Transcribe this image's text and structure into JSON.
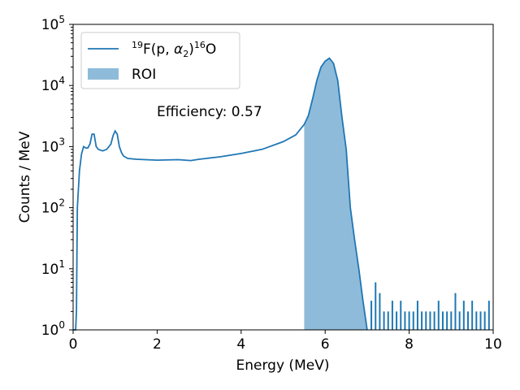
{
  "chart_data": {
    "type": "line",
    "title": "",
    "xlabel": "Energy (MeV)",
    "ylabel": "Counts / MeV",
    "xlim": [
      0,
      10
    ],
    "ylim": [
      1,
      100000
    ],
    "yscale": "log",
    "grid": false,
    "legend_position": "top-left",
    "x_ticks": [
      "0",
      "2",
      "4",
      "6",
      "8",
      "10"
    ],
    "y_ticks": [
      {
        "base": "10",
        "exp": "0"
      },
      {
        "base": "10",
        "exp": "1"
      },
      {
        "base": "10",
        "exp": "2"
      },
      {
        "base": "10",
        "exp": "3"
      },
      {
        "base": "10",
        "exp": "4"
      },
      {
        "base": "10",
        "exp": "5"
      }
    ],
    "legend": {
      "line_label": {
        "sup1": "19",
        "main1": "F(p, ",
        "alpha": "α",
        "sub": "2",
        "close": ")",
        "sup2": "16",
        "main2": "O"
      },
      "roi_label": "ROI"
    },
    "annotation": "Efficiency: 0.57",
    "colors": {
      "line": "#1f77b4",
      "roi_fill": "#8fbbda"
    },
    "roi_range": [
      5.5,
      7.0
    ],
    "series": [
      {
        "x": [
          0.0,
          0.06,
          0.08,
          0.1,
          0.15,
          0.2,
          0.25,
          0.3,
          0.35,
          0.4,
          0.45,
          0.5,
          0.55,
          0.6,
          0.7,
          0.8,
          0.9,
          0.95,
          1.0,
          1.05,
          1.1,
          1.15,
          1.2,
          1.3,
          1.5,
          2.0,
          2.5,
          2.8,
          3.0,
          3.5,
          4.0,
          4.5,
          5.0,
          5.3,
          5.5,
          5.6,
          5.7,
          5.8,
          5.9,
          6.0,
          6.1,
          6.2,
          6.3,
          6.4,
          6.5,
          6.6,
          6.7,
          6.8,
          6.9,
          7.0
        ],
        "y": [
          0,
          0,
          2,
          100,
          400,
          750,
          1000,
          950,
          950,
          1100,
          1600,
          1600,
          1000,
          900,
          850,
          900,
          1100,
          1500,
          1800,
          1600,
          1000,
          800,
          700,
          640,
          620,
          600,
          610,
          590,
          620,
          680,
          770,
          900,
          1200,
          1550,
          2300,
          3200,
          6000,
          12000,
          20000,
          25000,
          28000,
          23000,
          12000,
          3000,
          900,
          100,
          30,
          10,
          3,
          0
        ]
      }
    ],
    "noise": {
      "x": [
        7.1,
        7.2,
        7.3,
        7.4,
        7.5,
        7.6,
        7.7,
        7.8,
        7.9,
        8.0,
        8.1,
        8.2,
        8.3,
        8.4,
        8.5,
        8.6,
        8.7,
        8.8,
        8.9,
        9.0,
        9.1,
        9.2,
        9.3,
        9.4,
        9.5,
        9.6,
        9.7,
        9.8,
        9.9
      ],
      "y": [
        3,
        6,
        4,
        2,
        2,
        3,
        2,
        3,
        2,
        2,
        2,
        3,
        2,
        2,
        2,
        2,
        3,
        2,
        2,
        2,
        4,
        2,
        3,
        2,
        3,
        2,
        2,
        2,
        3
      ]
    }
  }
}
